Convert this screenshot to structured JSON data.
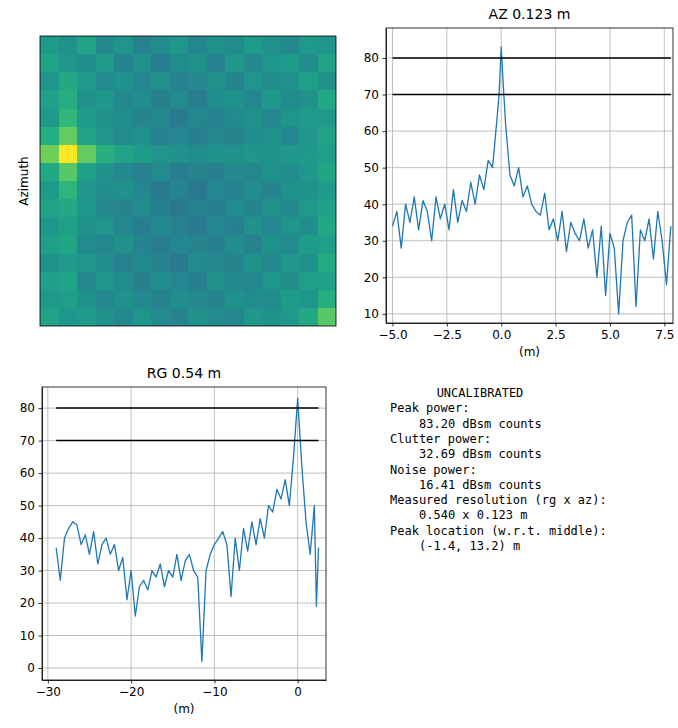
{
  "chart_data": [
    {
      "type": "heatmap",
      "ylabel": "Azimuth",
      "tick_labels": false,
      "zlim": [
        0,
        100
      ],
      "cells": [
        [
          55,
          50,
          58,
          47,
          52,
          44,
          49,
          53,
          46,
          51,
          48,
          55,
          50,
          47,
          54,
          52
        ],
        [
          58,
          52,
          49,
          55,
          45,
          50,
          42,
          48,
          51,
          44,
          53,
          47,
          52,
          55,
          49,
          58
        ],
        [
          52,
          60,
          54,
          48,
          51,
          46,
          50,
          44,
          47,
          50,
          45,
          52,
          49,
          51,
          56,
          50
        ],
        [
          57,
          62,
          50,
          53,
          47,
          49,
          43,
          48,
          42,
          49,
          51,
          46,
          53,
          48,
          50,
          60
        ],
        [
          54,
          66,
          55,
          50,
          49,
          45,
          47,
          41,
          46,
          44,
          48,
          50,
          47,
          52,
          55,
          54
        ],
        [
          62,
          76,
          58,
          52,
          48,
          50,
          44,
          46,
          43,
          47,
          45,
          49,
          51,
          46,
          52,
          58
        ],
        [
          78,
          100,
          76,
          63,
          58,
          55,
          52,
          50,
          49,
          51,
          50,
          52,
          51,
          53,
          54,
          56
        ],
        [
          60,
          74,
          57,
          51,
          47,
          44,
          48,
          42,
          45,
          43,
          47,
          46,
          50,
          49,
          53,
          59
        ],
        [
          55,
          65,
          52,
          49,
          50,
          46,
          41,
          45,
          40,
          46,
          44,
          49,
          45,
          51,
          50,
          55
        ],
        [
          58,
          60,
          53,
          47,
          45,
          48,
          43,
          40,
          44,
          42,
          48,
          45,
          50,
          47,
          54,
          57
        ],
        [
          53,
          57,
          50,
          52,
          46,
          42,
          47,
          44,
          41,
          47,
          43,
          50,
          46,
          52,
          49,
          60
        ],
        [
          56,
          59,
          48,
          46,
          50,
          45,
          42,
          46,
          45,
          43,
          49,
          44,
          51,
          48,
          55,
          56
        ],
        [
          51,
          55,
          52,
          49,
          44,
          47,
          45,
          41,
          48,
          46,
          45,
          50,
          47,
          53,
          50,
          61
        ],
        [
          57,
          58,
          47,
          53,
          48,
          43,
          49,
          46,
          43,
          50,
          47,
          46,
          52,
          49,
          56,
          57
        ],
        [
          54,
          56,
          51,
          46,
          50,
          47,
          44,
          49,
          47,
          45,
          51,
          48,
          49,
          55,
          52,
          62
        ],
        [
          58,
          53,
          55,
          50,
          47,
          52,
          48,
          45,
          50,
          48,
          46,
          53,
          51,
          54,
          60,
          74
        ]
      ]
    },
    {
      "type": "line",
      "title": "AZ 0.123 m",
      "xlabel": "(m)",
      "grid": true,
      "xlim": [
        -5.3,
        7.9
      ],
      "ylim": [
        7.5,
        88.2
      ],
      "xticks": [
        {
          "value": -5,
          "label": "−5.0"
        },
        {
          "value": -2.5,
          "label": "−2.5"
        },
        {
          "value": 0,
          "label": "0.0"
        },
        {
          "value": 2.5,
          "label": "2.5"
        },
        {
          "value": 5,
          "label": "5.0"
        },
        {
          "value": 7.5,
          "label": "7.5"
        }
      ],
      "yticks": [
        10,
        20,
        30,
        40,
        50,
        60,
        70,
        80
      ],
      "hlines": [
        80,
        70
      ],
      "x": [
        -5.0,
        -4.8,
        -4.6,
        -4.4,
        -4.2,
        -4.0,
        -3.8,
        -3.6,
        -3.4,
        -3.2,
        -3.0,
        -2.8,
        -2.6,
        -2.4,
        -2.2,
        -2.0,
        -1.8,
        -1.6,
        -1.4,
        -1.2,
        -1.0,
        -0.8,
        -0.6,
        -0.4,
        -0.2,
        -0.1,
        0.0,
        0.1,
        0.2,
        0.4,
        0.6,
        0.8,
        1.0,
        1.2,
        1.4,
        1.6,
        1.8,
        2.0,
        2.2,
        2.4,
        2.6,
        2.8,
        3.0,
        3.2,
        3.4,
        3.6,
        3.8,
        4.0,
        4.2,
        4.4,
        4.6,
        4.8,
        5.0,
        5.2,
        5.4,
        5.6,
        5.8,
        6.0,
        6.2,
        6.4,
        6.6,
        6.8,
        7.0,
        7.2,
        7.4,
        7.6,
        7.8
      ],
      "series": [
        {
          "color": "#1f77b4",
          "values": [
            34,
            38,
            28,
            40,
            35,
            42,
            33,
            41,
            38,
            30,
            42,
            36,
            40,
            33,
            44,
            35,
            41,
            38,
            46,
            40,
            48,
            44,
            52,
            50,
            63,
            70,
            83,
            72,
            62,
            48,
            45,
            50,
            42,
            45,
            40,
            38,
            37,
            43,
            33,
            36,
            30,
            38,
            27,
            35,
            32,
            30,
            36,
            28,
            33,
            20,
            34,
            15,
            32,
            28,
            10,
            30,
            35,
            37,
            12,
            33,
            30,
            36,
            25,
            38,
            30,
            18,
            34
          ]
        }
      ]
    },
    {
      "type": "line",
      "title": "RG 0.54 m",
      "xlabel": "(m)",
      "grid": true,
      "xlim": [
        -30.7,
        3.4
      ],
      "ylim": [
        -3.7,
        86.5
      ],
      "xticks": [
        {
          "value": -30,
          "label": "−30"
        },
        {
          "value": -20,
          "label": "−20"
        },
        {
          "value": -10,
          "label": "−10"
        },
        0
      ],
      "yticks": [
        0,
        10,
        20,
        30,
        40,
        50,
        60,
        70,
        80
      ],
      "hlines": [
        80,
        70
      ],
      "x": [
        -29,
        -28.5,
        -28,
        -27.5,
        -27,
        -26.5,
        -26,
        -25.5,
        -25,
        -24.5,
        -24,
        -23.5,
        -23,
        -22.5,
        -22,
        -21.5,
        -21,
        -20.5,
        -20,
        -19.5,
        -19,
        -18.5,
        -18,
        -17.5,
        -17,
        -16.5,
        -16,
        -15.5,
        -15,
        -14.5,
        -14,
        -13.5,
        -13,
        -12.5,
        -12,
        -11.5,
        -11,
        -10.5,
        -10,
        -9.5,
        -9,
        -8.5,
        -8,
        -7.5,
        -7,
        -6.5,
        -6,
        -5.5,
        -5,
        -4.5,
        -4,
        -3.5,
        -3,
        -2.5,
        -2,
        -1.5,
        -1,
        -0.5,
        0,
        0.5,
        1,
        1.5,
        2,
        2.25,
        2.5
      ],
      "series": [
        {
          "color": "#1f77b4",
          "values": [
            37,
            27,
            40,
            43,
            45,
            44,
            38,
            41,
            35,
            42,
            32,
            38,
            40,
            35,
            38,
            30,
            34,
            21,
            30,
            16,
            25,
            27,
            24,
            30,
            28,
            32,
            25,
            30,
            28,
            35,
            27,
            33,
            35,
            30,
            28,
            2,
            30,
            35,
            38,
            40,
            42,
            38,
            22,
            40,
            30,
            43,
            36,
            45,
            38,
            46,
            40,
            50,
            48,
            55,
            52,
            58,
            50,
            65,
            83,
            62,
            45,
            35,
            50,
            19,
            37
          ]
        }
      ]
    }
  ],
  "text_panel": {
    "title": "UNCALIBRATED",
    "items": [
      {
        "label": "Peak power:",
        "value": "83.20 dBsm counts"
      },
      {
        "label": "Clutter power:",
        "value": "32.69 dBsm counts"
      },
      {
        "label": "Noise power:",
        "value": "16.41 dBsm counts"
      },
      {
        "label": "Measured resolution (rg x az):",
        "value": "0.540 x 0.123 m"
      },
      {
        "label": "Peak location (w.r.t. middle):",
        "value": "(-1.4, 13.2) m"
      }
    ]
  }
}
